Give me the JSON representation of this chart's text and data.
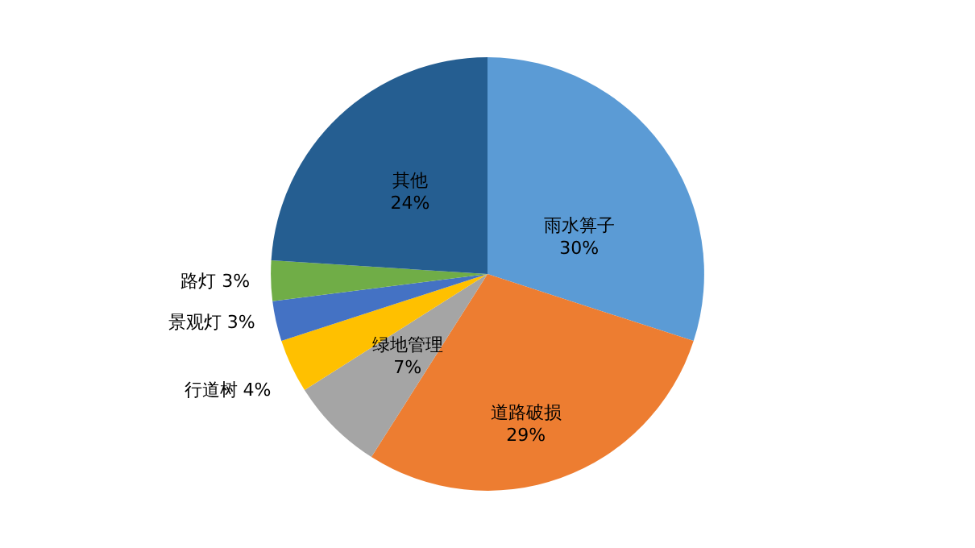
{
  "chart_data": {
    "type": "pie",
    "categories": [
      "雨水箅子",
      "道路破损",
      "绿地管理",
      "行道树",
      "景观灯",
      "路灯",
      "其他"
    ],
    "values": [
      30,
      29,
      7,
      4,
      3,
      3,
      24
    ],
    "value_labels": [
      "30%",
      "29%",
      "7%",
      "4%",
      "3%",
      "3%",
      "24%"
    ],
    "colors": [
      "#5b9bd5",
      "#ed7d31",
      "#a5a5a5",
      "#ffc000",
      "#4472c4",
      "#70ad47",
      "#255e91"
    ],
    "legend": false
  }
}
